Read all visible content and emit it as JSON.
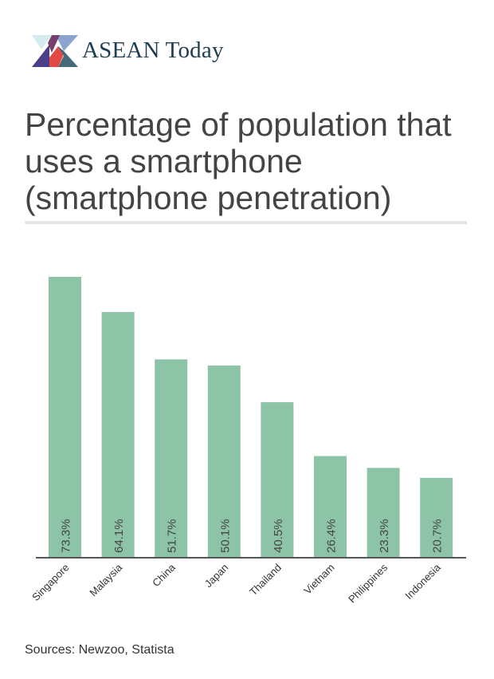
{
  "brand": {
    "name": "ASEAN Today"
  },
  "colors": {
    "bar": "#8dc3a7",
    "axis": "#555555",
    "title": "#444444",
    "brand": "#1f3d50"
  },
  "chart_data": {
    "type": "bar",
    "title": "Percentage of population that uses a smartphone (smartphone penetration)",
    "categories": [
      "Singapore",
      "Malaysia",
      "China",
      "Japan",
      "Thailand",
      "Vietnam",
      "Philippines",
      "Indonesia"
    ],
    "values": [
      73.3,
      64.1,
      51.7,
      50.1,
      40.5,
      26.4,
      23.3,
      20.7
    ],
    "data_labels": [
      "73.3%",
      "64.1%",
      "51.7%",
      "50.1%",
      "40.5%",
      "26.4%",
      "23.3%",
      "20.7%"
    ],
    "xlabel": "",
    "ylabel": "",
    "grid": false
  },
  "footer": {
    "source": "Sources: Newzoo, Statista"
  }
}
